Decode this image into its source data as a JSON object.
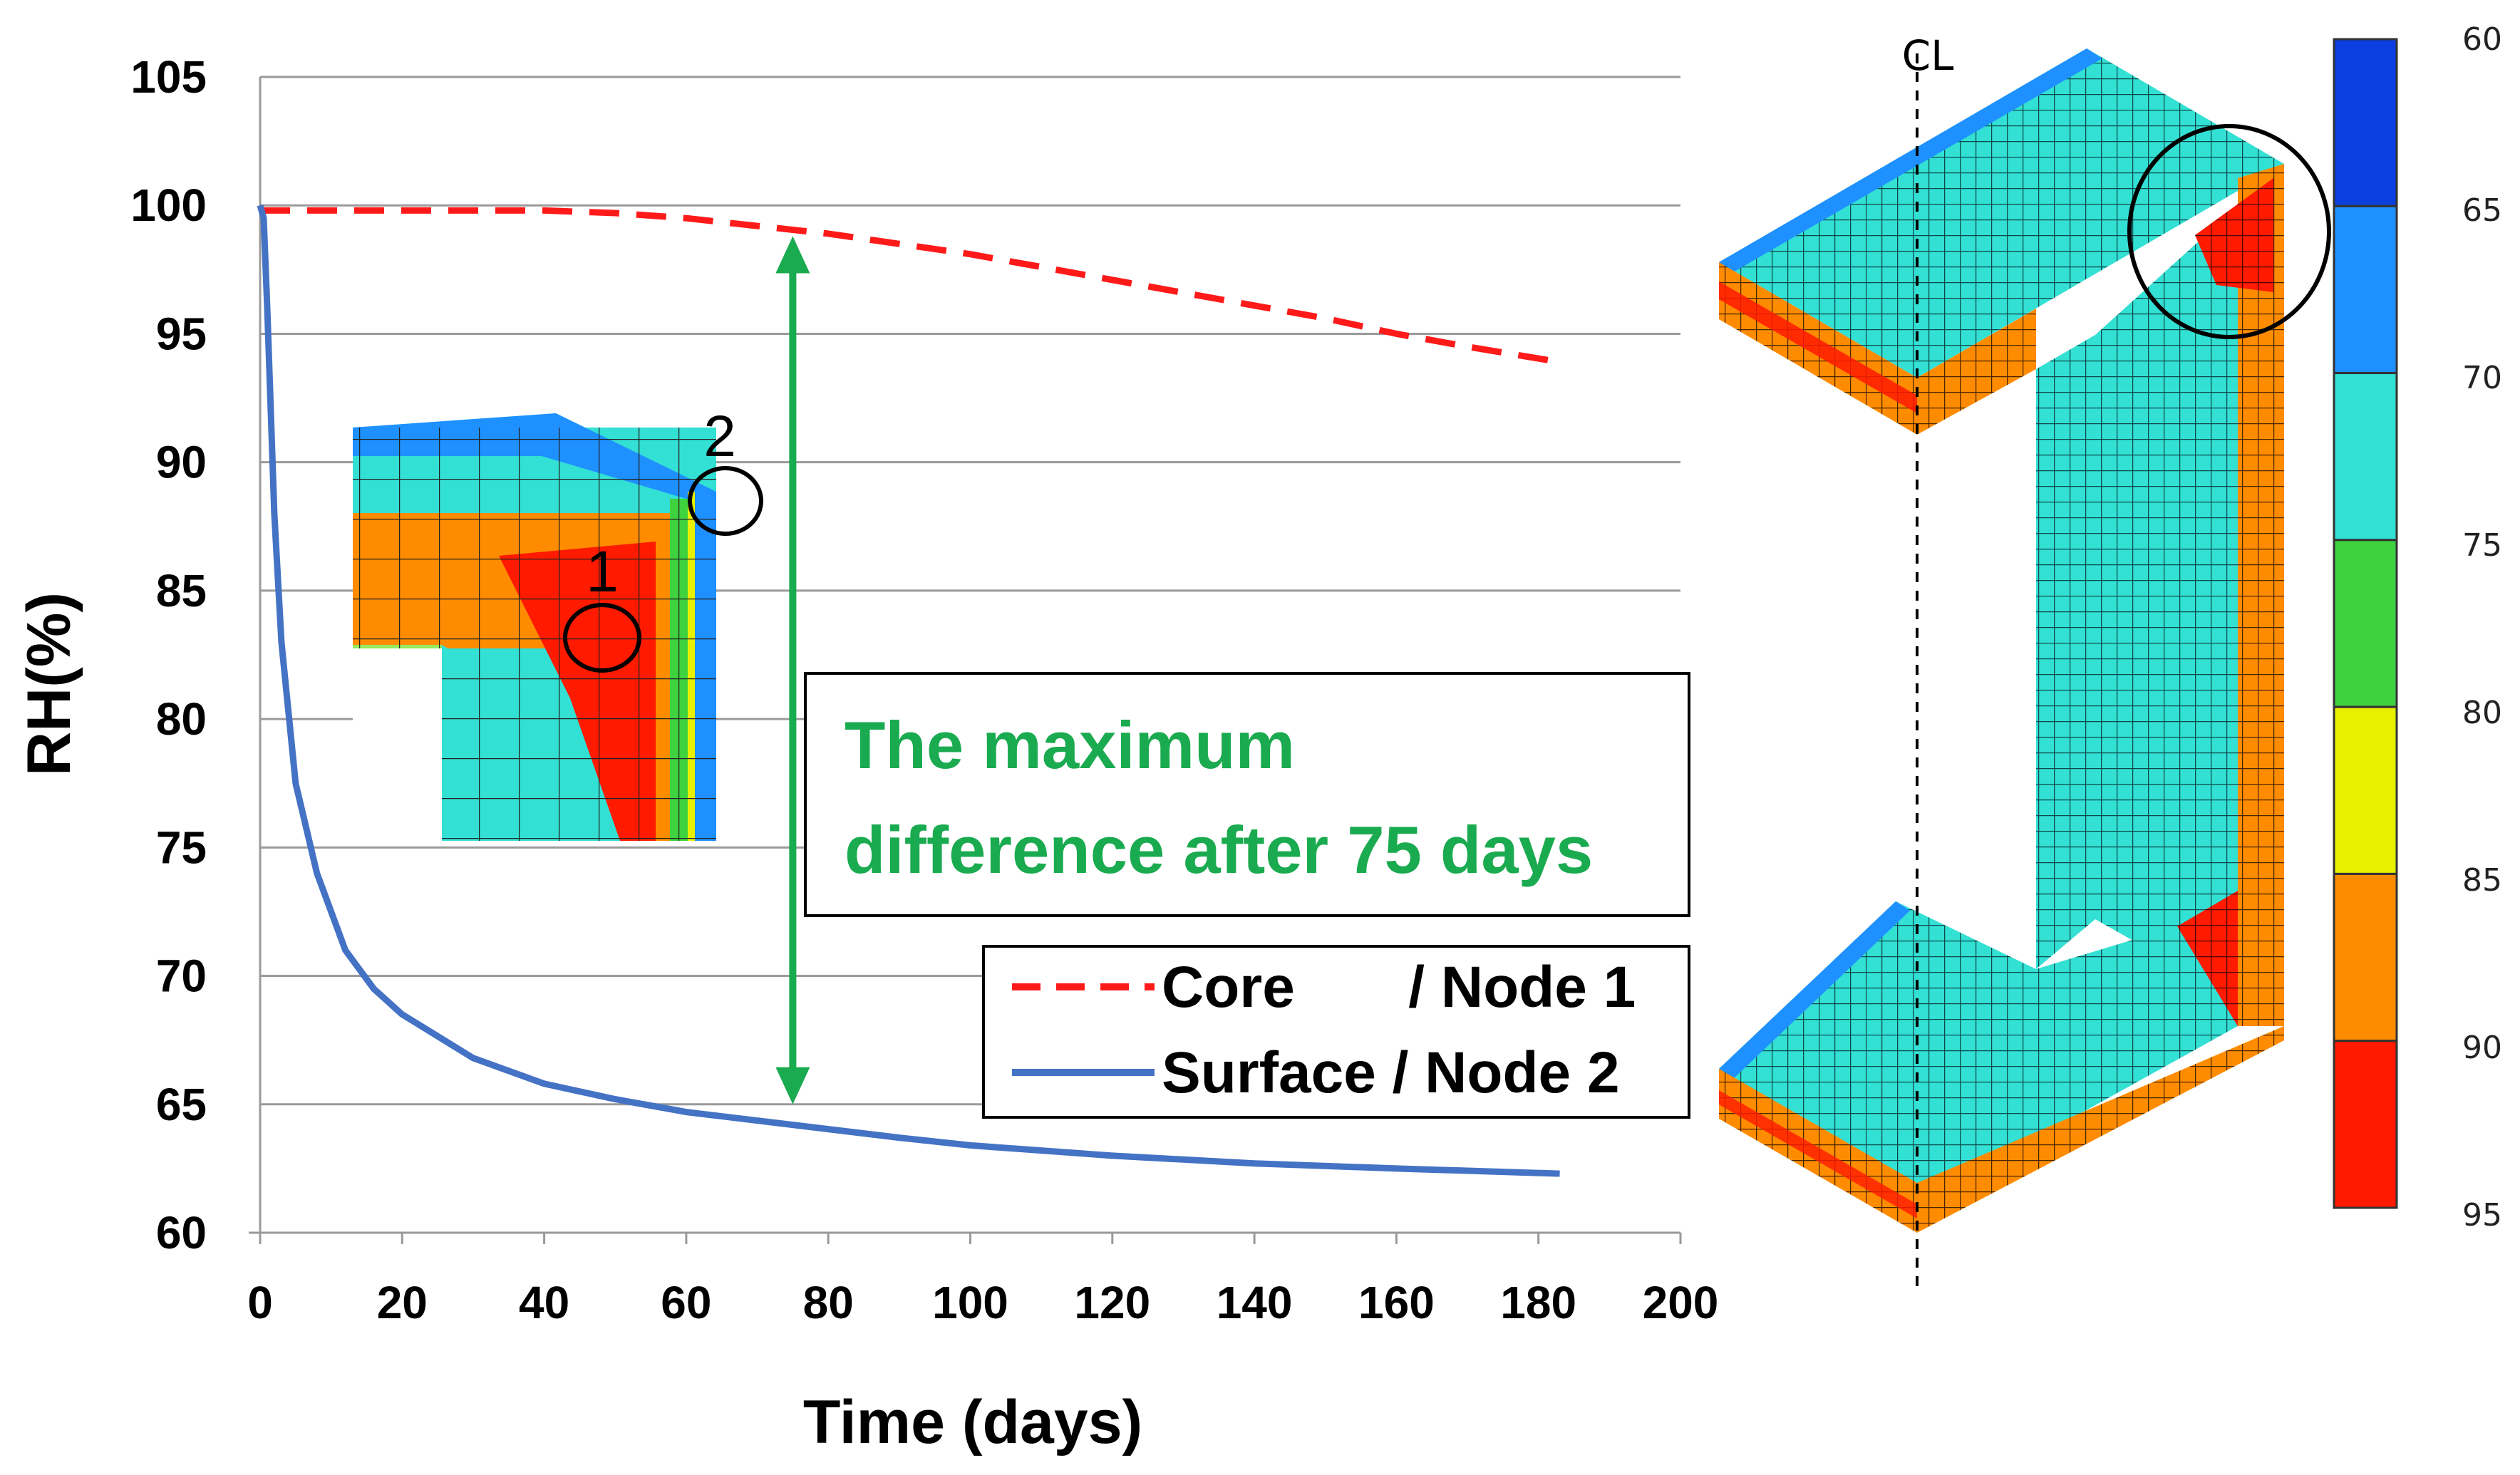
{
  "chart_data": {
    "type": "line",
    "xlabel": "Time (days)",
    "ylabel": "RH(%)",
    "xlim": [
      0,
      200
    ],
    "ylim": [
      60,
      105
    ],
    "x_ticks": [
      "0",
      "20",
      "40",
      "60",
      "80",
      "100",
      "120",
      "140",
      "160",
      "180",
      "200"
    ],
    "y_ticks": [
      "60",
      "65",
      "70",
      "75",
      "80",
      "85",
      "90",
      "95",
      "100",
      "105"
    ],
    "grid": "horizontal",
    "legend_position": "lower-right",
    "series": [
      {
        "name": "Core       / Node 1",
        "style": "dashed",
        "color": "#ff1a1a",
        "x": [
          0,
          10,
          20,
          30,
          40,
          50,
          60,
          70,
          80,
          90,
          100,
          110,
          120,
          130,
          140,
          150,
          160,
          170,
          183
        ],
        "y": [
          99.8,
          99.8,
          99.8,
          99.8,
          99.8,
          99.7,
          99.5,
          99.2,
          98.9,
          98.5,
          98.1,
          97.6,
          97.1,
          96.6,
          96.1,
          95.6,
          95.0,
          94.5,
          93.9
        ]
      },
      {
        "name": "Surface / Node 2",
        "style": "solid",
        "color": "#4472c4",
        "x": [
          0,
          0.5,
          1,
          2,
          3,
          5,
          8,
          12,
          16,
          20,
          30,
          40,
          50,
          60,
          75,
          90,
          100,
          120,
          140,
          160,
          183
        ],
        "y": [
          100,
          99.5,
          96,
          88,
          83,
          77.5,
          74,
          71,
          69.5,
          68.5,
          66.8,
          65.8,
          65.2,
          64.7,
          64.2,
          63.7,
          63.4,
          63.0,
          62.7,
          62.5,
          62.3
        ]
      }
    ],
    "annotations": {
      "difference_text_line1": "The maximum",
      "difference_text_line2": "difference after 75 days",
      "arrow_at_x": 75,
      "arrow_from_y": 98.8,
      "arrow_to_y": 65.0,
      "arrow_color": "#1aaa4f"
    }
  },
  "inset_labels": {
    "node_1": "1",
    "node_2": "2"
  },
  "model_label": "CL",
  "colorbar": {
    "labels": [
      "60",
      "65",
      "70",
      "75",
      "80",
      "85",
      "90",
      "95"
    ],
    "colors": [
      "#0b3fe0",
      "#1e90ff",
      "#33e0d4",
      "#3fd23f",
      "#e8f000",
      "#ff8c00",
      "#ff1a00"
    ]
  }
}
